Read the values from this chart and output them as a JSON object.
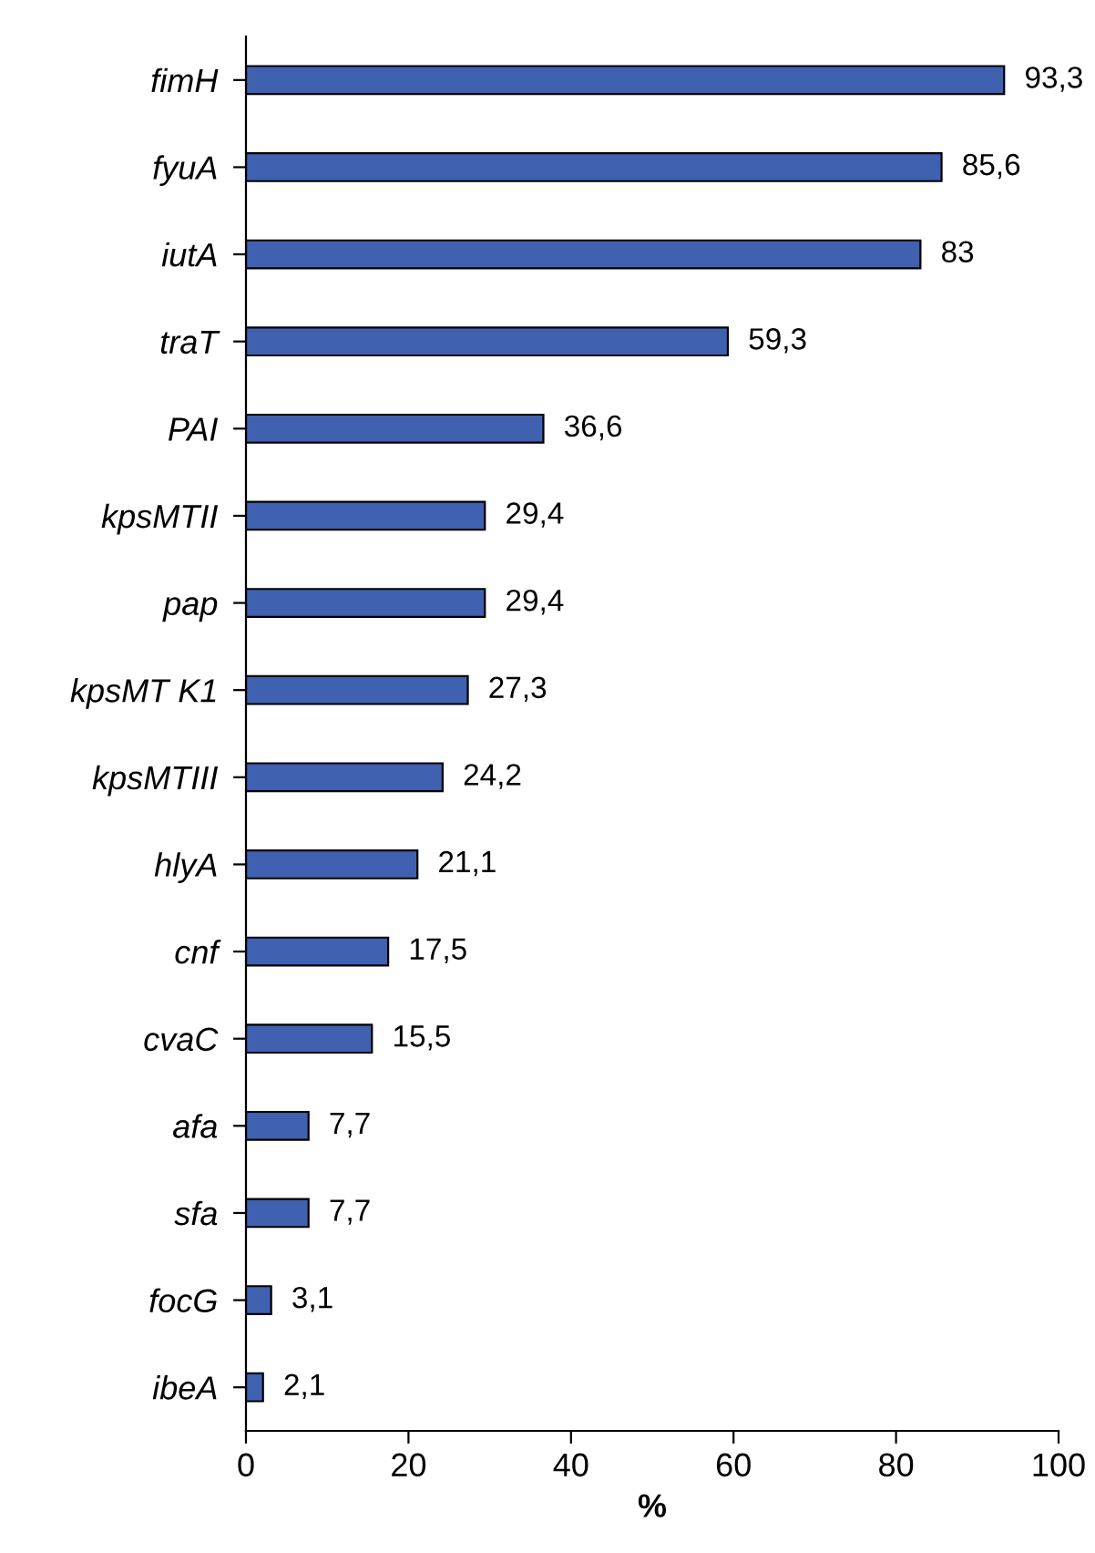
{
  "chart_data": {
    "type": "bar",
    "orientation": "horizontal",
    "xlabel": "%",
    "categories": [
      "fimH",
      "fyuA",
      "iutA",
      "traT",
      "PAI",
      "kpsMTII",
      "pap",
      "kpsMT K1",
      "kpsMTIII",
      "hlyA",
      "cnf",
      "cvaC",
      "afa",
      "sfa",
      "focG",
      "ibeA"
    ],
    "values": [
      93.3,
      85.6,
      83,
      59.3,
      36.6,
      29.4,
      29.4,
      27.3,
      24.2,
      21.1,
      17.5,
      15.5,
      7.7,
      7.7,
      3.1,
      2.1
    ],
    "value_labels": [
      "93,3",
      "85,6",
      "83",
      "59,3",
      "36,6",
      "29,4",
      "29,4",
      "27,3",
      "24,2",
      "21,1",
      "17,5",
      "15,5",
      "7,7",
      "7,7",
      "3,1",
      "2,1"
    ],
    "color": "#4060b0",
    "xlim": [
      0,
      100
    ],
    "xticks": [
      0,
      20,
      40,
      60,
      80,
      100
    ],
    "grid": false
  }
}
